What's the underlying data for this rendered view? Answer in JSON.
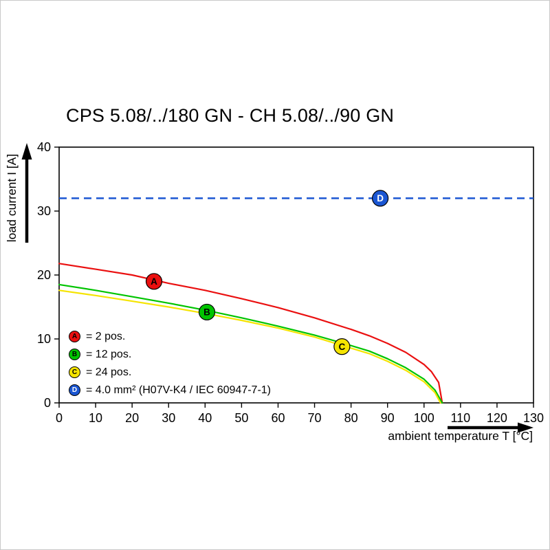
{
  "chart_data": {
    "type": "line",
    "title": "CPS 5.08/../180 GN - CH 5.08/../90 GN",
    "xlabel": "ambient temperature T [°C]",
    "ylabel": "load current I [A]",
    "xlim": [
      0,
      130
    ],
    "ylim": [
      0,
      40
    ],
    "xticks": [
      0,
      10,
      20,
      30,
      40,
      50,
      60,
      70,
      80,
      90,
      100,
      110,
      120,
      130
    ],
    "yticks": [
      0,
      10,
      20,
      30,
      40
    ],
    "grid": false,
    "legend_position": "inside bottom-left",
    "series": [
      {
        "id": "A",
        "label": "= 2 pos.",
        "color": "#ea1010",
        "letter_color": "#000000",
        "kind": "curve",
        "points": [
          [
            0,
            21.8
          ],
          [
            10,
            20.9
          ],
          [
            20,
            20.0
          ],
          [
            30,
            18.7
          ],
          [
            40,
            17.6
          ],
          [
            50,
            16.3
          ],
          [
            60,
            14.9
          ],
          [
            70,
            13.3
          ],
          [
            80,
            11.5
          ],
          [
            85,
            10.5
          ],
          [
            90,
            9.3
          ],
          [
            95,
            7.9
          ],
          [
            100,
            6.0
          ],
          [
            102,
            4.9
          ],
          [
            104,
            3.2
          ],
          [
            105,
            0
          ]
        ],
        "marker": {
          "x": 26,
          "y": 19
        }
      },
      {
        "id": "B",
        "label": "= 12 pos.",
        "color": "#00c400",
        "letter_color": "#000000",
        "kind": "curve",
        "points": [
          [
            0,
            18.5
          ],
          [
            10,
            17.6
          ],
          [
            20,
            16.6
          ],
          [
            30,
            15.6
          ],
          [
            40,
            14.5
          ],
          [
            50,
            13.3
          ],
          [
            60,
            12.0
          ],
          [
            70,
            10.6
          ],
          [
            78,
            9.3
          ],
          [
            85,
            8.1
          ],
          [
            90,
            6.9
          ],
          [
            95,
            5.5
          ],
          [
            100,
            3.7
          ],
          [
            103,
            2.0
          ],
          [
            105,
            0
          ]
        ],
        "marker": {
          "x": 40.5,
          "y": 14.2
        }
      },
      {
        "id": "C",
        "label": "= 24 pos.",
        "color": "#f5e400",
        "letter_color": "#000000",
        "kind": "curve",
        "points": [
          [
            0,
            17.6
          ],
          [
            10,
            16.8
          ],
          [
            20,
            15.9
          ],
          [
            30,
            15.0
          ],
          [
            40,
            14.0
          ],
          [
            50,
            12.9
          ],
          [
            60,
            11.7
          ],
          [
            70,
            10.3
          ],
          [
            78,
            8.9
          ],
          [
            85,
            7.7
          ],
          [
            90,
            6.5
          ],
          [
            95,
            5.1
          ],
          [
            100,
            3.3
          ],
          [
            103,
            1.6
          ],
          [
            104.5,
            0
          ]
        ],
        "marker": {
          "x": 77.5,
          "y": 8.8
        }
      },
      {
        "id": "D",
        "label": "= 4.0 mm² (H07V-K4 / IEC 60947-7-1)",
        "color": "#1b56d2",
        "letter_color": "#ffffff",
        "kind": "hline-dashed",
        "value": 32,
        "marker": {
          "x": 88,
          "y": 32
        }
      }
    ]
  }
}
